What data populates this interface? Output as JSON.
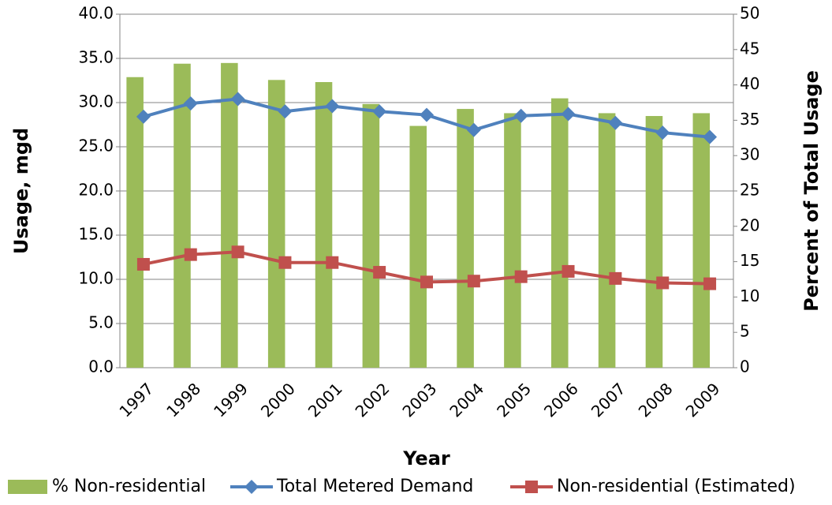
{
  "chart_data": {
    "type": "bar",
    "x_label": "Year",
    "y_label": "Usage, mgd",
    "y2_label": "Percent of Total Usage",
    "categories": [
      "1997",
      "1998",
      "1999",
      "2000",
      "2001",
      "2002",
      "2003",
      "2004",
      "2005",
      "2006",
      "2007",
      "2008",
      "2009"
    ],
    "series": [
      {
        "name": "% Non-residential",
        "type": "bar",
        "axis": "y2",
        "color": "#9bbb59",
        "values": [
          41.1,
          43.0,
          43.1,
          40.7,
          40.4,
          37.3,
          34.2,
          36.6,
          36.0,
          38.1,
          36.0,
          35.6,
          36.0
        ]
      },
      {
        "name": "Total Metered Demand",
        "type": "line",
        "marker": "diamond",
        "color": "#4f81bd",
        "values": [
          28.4,
          29.9,
          30.4,
          29.0,
          29.6,
          29.0,
          28.6,
          26.9,
          28.5,
          28.7,
          27.7,
          26.6,
          26.1
        ]
      },
      {
        "name": "Non-residential (Estimated)",
        "type": "line",
        "marker": "square",
        "color": "#c0504d",
        "values": [
          11.7,
          12.8,
          13.1,
          11.9,
          11.9,
          10.8,
          9.7,
          9.8,
          10.3,
          10.9,
          10.1,
          9.6,
          9.5
        ]
      }
    ],
    "ylim": [
      0,
      40
    ],
    "yticks": [
      {
        "value": 0,
        "label": "0.0"
      },
      {
        "value": 5,
        "label": "5.0"
      },
      {
        "value": 10,
        "label": "10.0"
      },
      {
        "value": 15,
        "label": "15.0"
      },
      {
        "value": 20,
        "label": "20.0"
      },
      {
        "value": 25,
        "label": "25.0"
      },
      {
        "value": 30,
        "label": "30.0"
      },
      {
        "value": 35,
        "label": "35.0"
      },
      {
        "value": 40,
        "label": "40.0"
      }
    ],
    "y2lim": [
      0,
      50
    ],
    "y2ticks": [
      0,
      5,
      10,
      15,
      20,
      25,
      30,
      35,
      40,
      45,
      50
    ],
    "grid": true,
    "legend": "bottom"
  }
}
